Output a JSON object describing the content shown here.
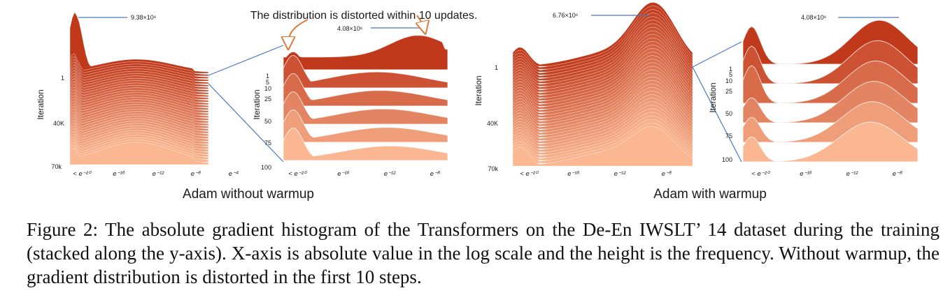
{
  "figure": {
    "annotation": "The distribution is distorted within 10 updates.",
    "panels": [
      {
        "id": "adam-without-warmup",
        "title": "Adam without warmup",
        "overview": {
          "ylabel": "Iteration",
          "yticks": [
            "1",
            "40K",
            "70k"
          ],
          "xticks": [
            "< e⁻²⁰",
            "e⁻¹⁶",
            "e⁻¹²",
            "e⁻⁸",
            "e⁻⁴"
          ],
          "peak_label": "9.38×10⁶"
        },
        "zoom": {
          "ylabel": "Iteration",
          "yticks": [
            "1",
            "5",
            "10",
            "25",
            "50",
            "75",
            "100"
          ],
          "xticks": [
            "< e⁻²⁰",
            "e⁻¹⁶",
            "e⁻¹²",
            "e⁻⁸"
          ],
          "peak_label": "4.08×10⁶"
        }
      },
      {
        "id": "adam-with-warmup",
        "title": "Adam with warmup",
        "overview": {
          "ylabel": "Iteration",
          "yticks": [
            "1",
            "40K",
            "70k"
          ],
          "xticks": [
            "< e⁻²⁰",
            "e⁻¹⁶",
            "e⁻¹²",
            "e⁻⁸"
          ],
          "peak_label": "6.76×10⁶"
        },
        "zoom": {
          "ylabel": "Iteration",
          "yticks": [
            "1",
            "5",
            "10",
            "25",
            "50",
            "75",
            "100"
          ],
          "xticks": [
            "< e⁻²⁰",
            "e⁻¹⁶",
            "e⁻¹²",
            "e⁻⁸"
          ],
          "peak_label": "4.08×10⁶"
        }
      }
    ],
    "colors": {
      "back": "#c0391b",
      "front": "#fbb791",
      "line": "#4a78c0"
    }
  },
  "caption": "Figure 2: The absolute gradient histogram of the Transformers on the De-En IWSLT’ 14 dataset during the training (stacked along the y-axis). X-axis is absolute value in the log scale and the height is the frequency. Without warmup, the gradient distribution is distorted in the first 10 steps."
}
